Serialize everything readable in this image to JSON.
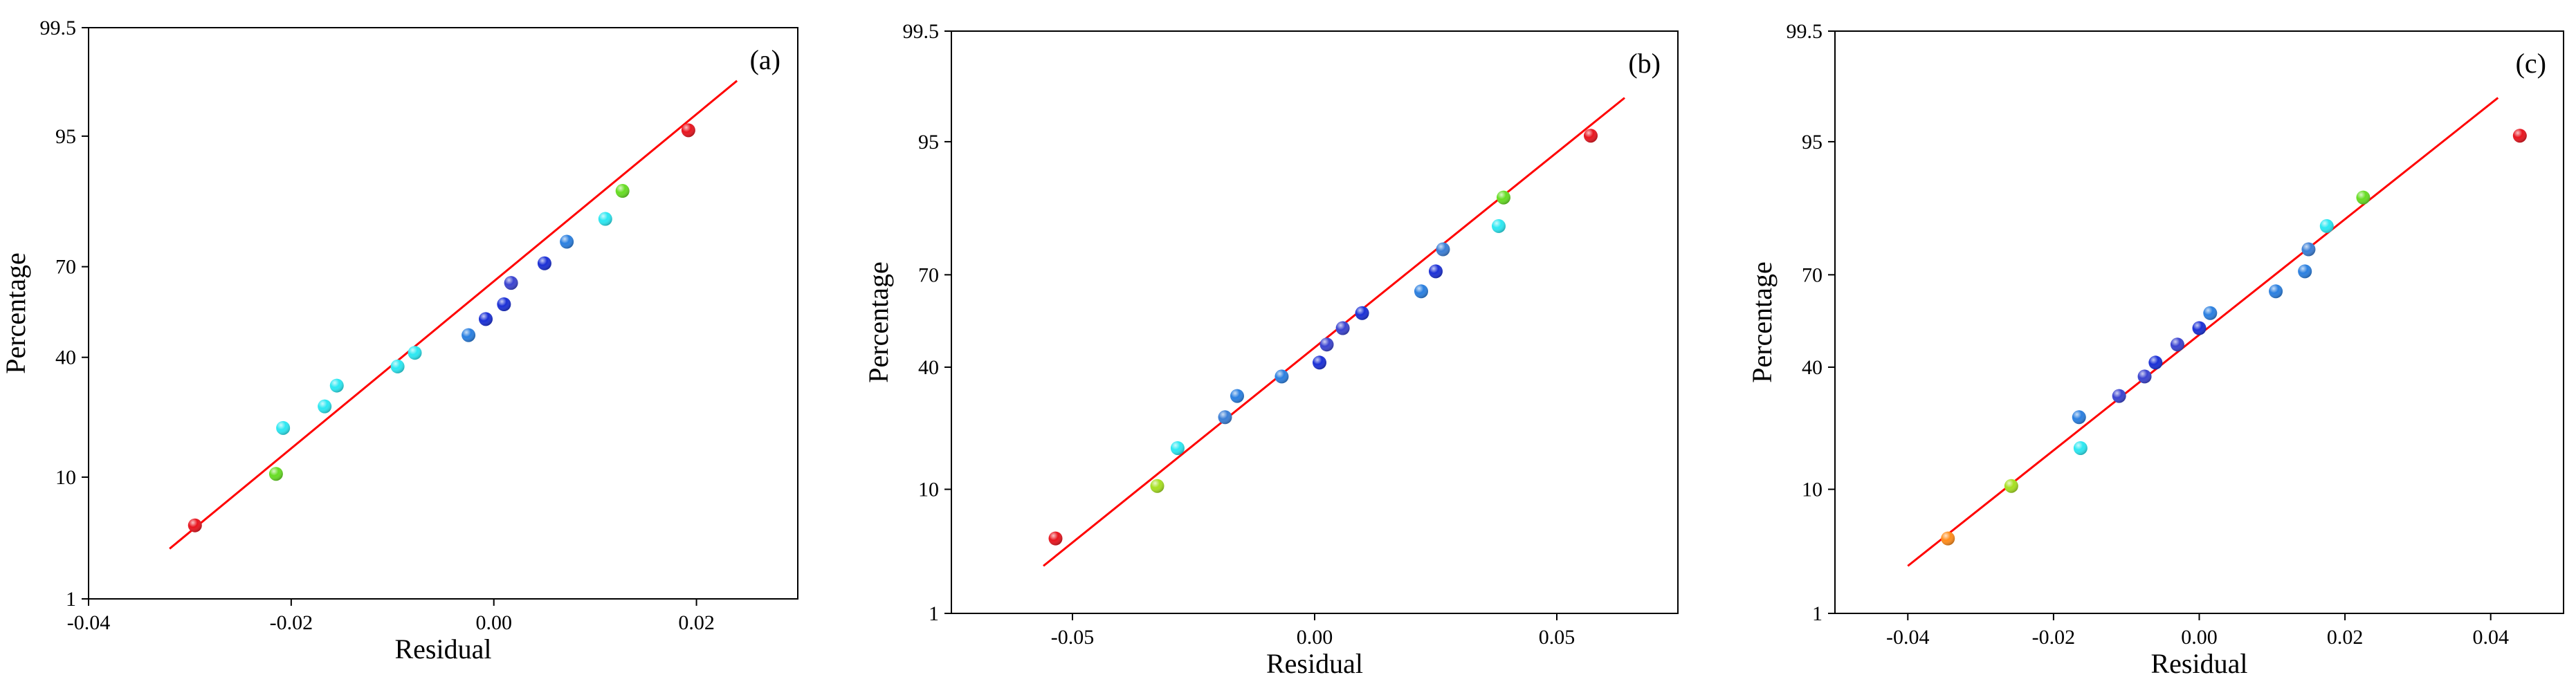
{
  "chart_data": [
    {
      "type": "scatter",
      "panel_label": "(a)",
      "xlabel": "Residual",
      "ylabel": "Percentage",
      "xlim": [
        -0.04,
        0.03
      ],
      "x_ticks": [
        -0.04,
        -0.02,
        0.0,
        0.02
      ],
      "x_tick_labels": [
        "-0.04",
        "-0.02",
        "0.00",
        "0.02"
      ],
      "y_ticks": [
        1,
        10,
        40,
        70,
        95,
        99.5
      ],
      "y_tick_labels": [
        "1",
        "10",
        "40",
        "70",
        "95",
        "99.5"
      ],
      "y_scale": "normal probability",
      "grid": false,
      "fit_line": {
        "color": "#ff0000",
        "x": [
          -0.032,
          0.024
        ],
        "y": [
          2.9,
          98.3
        ]
      },
      "points": [
        {
          "x": -0.0295,
          "y": 4.5,
          "color": "#e8141e"
        },
        {
          "x": -0.0215,
          "y": 10.5,
          "color": "#66dd22"
        },
        {
          "x": -0.0208,
          "y": 19.5,
          "color": "#2be8f2"
        },
        {
          "x": -0.0167,
          "y": 25.0,
          "color": "#2be8f2"
        },
        {
          "x": -0.0155,
          "y": 31.0,
          "color": "#2be8f2"
        },
        {
          "x": -0.0095,
          "y": 37.0,
          "color": "#2be8f2"
        },
        {
          "x": -0.0078,
          "y": 41.5,
          "color": "#2be8f2"
        },
        {
          "x": -0.0025,
          "y": 47.5,
          "color": "#2a7fe0"
        },
        {
          "x": -0.0008,
          "y": 53.0,
          "color": "#1a2fd6"
        },
        {
          "x": 0.001,
          "y": 58.0,
          "color": "#1a2fd6"
        },
        {
          "x": 0.0017,
          "y": 65.0,
          "color": "#3a43d0"
        },
        {
          "x": 0.005,
          "y": 71.0,
          "color": "#1a2fd6"
        },
        {
          "x": 0.0072,
          "y": 77.0,
          "color": "#2a7fe0"
        },
        {
          "x": 0.011,
          "y": 82.5,
          "color": "#2be8f2"
        },
        {
          "x": 0.0127,
          "y": 88.0,
          "color": "#66dd22"
        },
        {
          "x": 0.0192,
          "y": 95.5,
          "color": "#e8141e"
        }
      ]
    },
    {
      "type": "scatter",
      "panel_label": "(b)",
      "xlabel": "Residual",
      "ylabel": "Percentage",
      "xlim": [
        -0.075,
        0.075
      ],
      "x_ticks": [
        -0.05,
        0.0,
        0.05
      ],
      "x_tick_labels": [
        "-0.05",
        "0.00",
        "0.05"
      ],
      "y_ticks": [
        1,
        10,
        40,
        70,
        95,
        99.5
      ],
      "y_tick_labels": [
        "1",
        "10",
        "40",
        "70",
        "95",
        "99.5"
      ],
      "y_scale": "normal probability",
      "grid": false,
      "fit_line": {
        "color": "#ff0000",
        "x": [
          -0.056,
          0.064
        ],
        "y": [
          2.7,
          97.8
        ]
      },
      "points": [
        {
          "x": -0.0535,
          "y": 4.5,
          "color": "#e8141e"
        },
        {
          "x": -0.0325,
          "y": 10.5,
          "color": "#a6e020"
        },
        {
          "x": -0.0283,
          "y": 17.5,
          "color": "#2be8f2"
        },
        {
          "x": -0.0185,
          "y": 25.0,
          "color": "#3a7ed6"
        },
        {
          "x": -0.016,
          "y": 31.0,
          "color": "#2a7fe0"
        },
        {
          "x": -0.0068,
          "y": 37.0,
          "color": "#2a7fe0"
        },
        {
          "x": 0.001,
          "y": 41.5,
          "color": "#1a2fd6"
        },
        {
          "x": 0.0025,
          "y": 47.5,
          "color": "#3a43d0"
        },
        {
          "x": 0.0058,
          "y": 53.0,
          "color": "#3a43d0"
        },
        {
          "x": 0.0098,
          "y": 58.0,
          "color": "#1a2fd6"
        },
        {
          "x": 0.022,
          "y": 65.0,
          "color": "#2a7fe0"
        },
        {
          "x": 0.025,
          "y": 71.0,
          "color": "#1a2fd6"
        },
        {
          "x": 0.0265,
          "y": 77.0,
          "color": "#3a7ed6"
        },
        {
          "x": 0.038,
          "y": 82.5,
          "color": "#2be8f2"
        },
        {
          "x": 0.039,
          "y": 88.0,
          "color": "#66dd22"
        },
        {
          "x": 0.057,
          "y": 95.5,
          "color": "#e8141e"
        }
      ]
    },
    {
      "type": "scatter",
      "panel_label": "(c)",
      "xlabel": "Residual",
      "ylabel": "Percentage",
      "xlim": [
        -0.05,
        0.05
      ],
      "x_ticks": [
        -0.04,
        -0.02,
        0.0,
        0.02,
        0.04
      ],
      "x_tick_labels": [
        "-0.04",
        "-0.02",
        "0.00",
        "0.02",
        "0.04"
      ],
      "y_ticks": [
        1,
        10,
        40,
        70,
        95,
        99.5
      ],
      "y_tick_labels": [
        "1",
        "10",
        "40",
        "70",
        "95",
        "99.5"
      ],
      "y_scale": "normal probability",
      "grid": false,
      "fit_line": {
        "color": "#ff0000",
        "x": [
          -0.04,
          0.041
        ],
        "y": [
          2.7,
          97.8
        ]
      },
      "points": [
        {
          "x": -0.0345,
          "y": 4.5,
          "color": "#ff8c1a"
        },
        {
          "x": -0.0258,
          "y": 10.5,
          "color": "#a6e020"
        },
        {
          "x": -0.0163,
          "y": 17.5,
          "color": "#2be8f2"
        },
        {
          "x": -0.0165,
          "y": 25.0,
          "color": "#2a7fe0"
        },
        {
          "x": -0.011,
          "y": 31.0,
          "color": "#3a43d0"
        },
        {
          "x": -0.0075,
          "y": 37.0,
          "color": "#3a43d0"
        },
        {
          "x": -0.006,
          "y": 41.5,
          "color": "#1a2fd6"
        },
        {
          "x": -0.003,
          "y": 47.5,
          "color": "#3a43d0"
        },
        {
          "x": 0.0,
          "y": 53.0,
          "color": "#1a2fd6"
        },
        {
          "x": 0.0015,
          "y": 58.0,
          "color": "#2a7fe0"
        },
        {
          "x": 0.0105,
          "y": 65.0,
          "color": "#2a7fe0"
        },
        {
          "x": 0.0145,
          "y": 71.0,
          "color": "#2a7fe0"
        },
        {
          "x": 0.015,
          "y": 77.0,
          "color": "#3a7ed6"
        },
        {
          "x": 0.0175,
          "y": 82.5,
          "color": "#2be8f2"
        },
        {
          "x": 0.0225,
          "y": 88.0,
          "color": "#66dd22"
        },
        {
          "x": 0.044,
          "y": 95.5,
          "color": "#e8141e"
        }
      ]
    }
  ]
}
